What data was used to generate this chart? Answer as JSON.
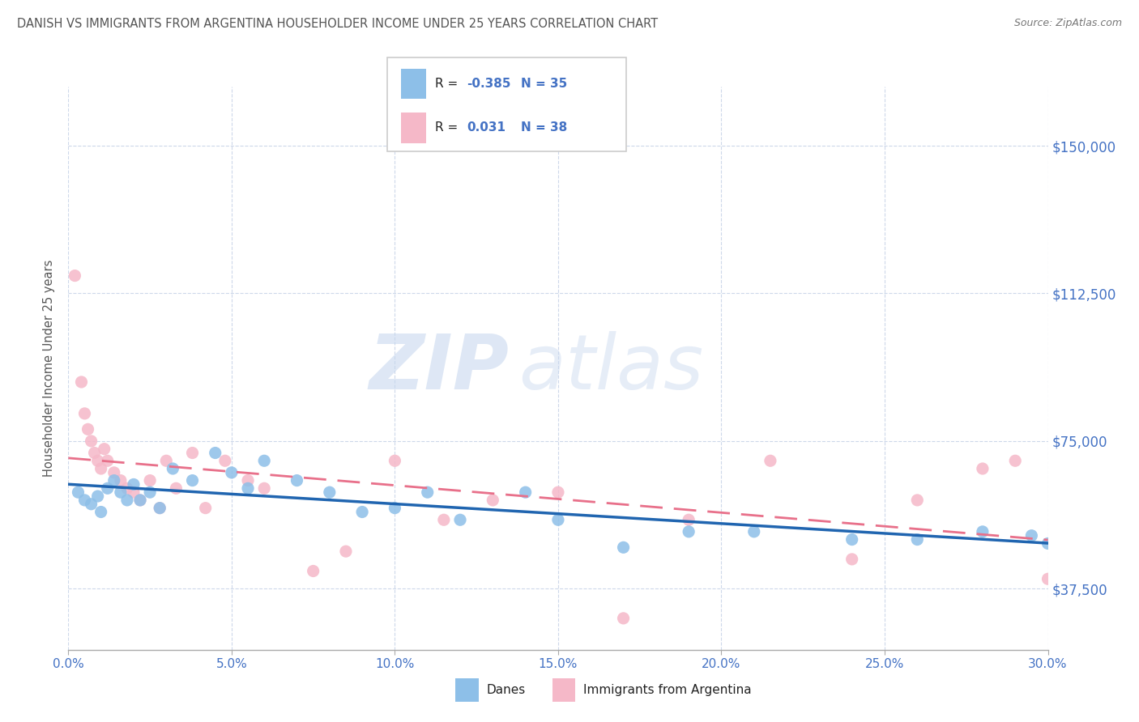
{
  "title": "DANISH VS IMMIGRANTS FROM ARGENTINA HOUSEHOLDER INCOME UNDER 25 YEARS CORRELATION CHART",
  "source": "Source: ZipAtlas.com",
  "xlabel_vals": [
    0.0,
    5.0,
    10.0,
    15.0,
    20.0,
    25.0,
    30.0
  ],
  "ylabel_ticks": [
    "$37,500",
    "$75,000",
    "$112,500",
    "$150,000"
  ],
  "ylabel_vals": [
    37500,
    75000,
    112500,
    150000
  ],
  "xlim": [
    0.0,
    30.0
  ],
  "ylim": [
    22000,
    165000
  ],
  "danes_R": -0.385,
  "danes_N": 35,
  "argentina_R": 0.031,
  "argentina_N": 38,
  "danes_color": "#8dbfe8",
  "argentina_color": "#f5b8c8",
  "danes_line_color": "#2065b0",
  "argentina_line_color": "#e8708a",
  "danes_scatter_x": [
    0.3,
    0.5,
    0.7,
    0.9,
    1.0,
    1.2,
    1.4,
    1.6,
    1.8,
    2.0,
    2.2,
    2.5,
    2.8,
    3.2,
    3.8,
    4.5,
    5.0,
    5.5,
    6.0,
    7.0,
    8.0,
    9.0,
    10.0,
    11.0,
    12.0,
    14.0,
    15.0,
    17.0,
    19.0,
    21.0,
    24.0,
    26.0,
    28.0,
    29.5,
    30.0
  ],
  "danes_scatter_y": [
    62000,
    60000,
    59000,
    61000,
    57000,
    63000,
    65000,
    62000,
    60000,
    64000,
    60000,
    62000,
    58000,
    68000,
    65000,
    72000,
    67000,
    63000,
    70000,
    65000,
    62000,
    57000,
    58000,
    62000,
    55000,
    62000,
    55000,
    48000,
    52000,
    52000,
    50000,
    50000,
    52000,
    51000,
    49000
  ],
  "argentina_scatter_x": [
    0.2,
    0.4,
    0.5,
    0.6,
    0.7,
    0.8,
    0.9,
    1.0,
    1.1,
    1.2,
    1.4,
    1.6,
    1.8,
    2.0,
    2.2,
    2.5,
    2.8,
    3.0,
    3.3,
    3.8,
    4.2,
    4.8,
    5.5,
    6.0,
    7.5,
    8.5,
    10.0,
    11.5,
    13.0,
    15.0,
    17.0,
    19.0,
    21.5,
    24.0,
    26.0,
    28.0,
    29.0,
    30.0
  ],
  "argentina_scatter_y": [
    117000,
    90000,
    82000,
    78000,
    75000,
    72000,
    70000,
    68000,
    73000,
    70000,
    67000,
    65000,
    63000,
    62000,
    60000,
    65000,
    58000,
    70000,
    63000,
    72000,
    58000,
    70000,
    65000,
    63000,
    42000,
    47000,
    70000,
    55000,
    60000,
    62000,
    30000,
    55000,
    70000,
    45000,
    60000,
    68000,
    70000,
    40000
  ],
  "watermark_zip": "ZIP",
  "watermark_atlas": "atlas",
  "background_color": "#ffffff",
  "grid_color": "#c8d4e8",
  "title_color": "#555555",
  "source_color": "#777777",
  "axis_label_color": "#4472c4",
  "tick_color": "#4472c4",
  "ylabel_label": "Householder Income Under 25 years"
}
